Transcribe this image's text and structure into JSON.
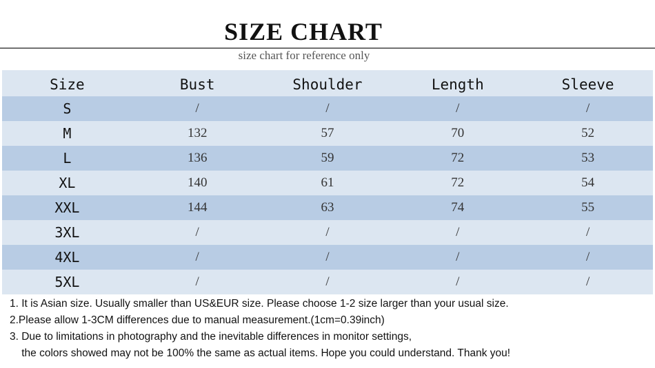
{
  "header": {
    "title": "SIZE CHART",
    "subtitle": "size chart for reference only"
  },
  "colors": {
    "row_light": "#dce6f1",
    "row_dark": "#b8cce4"
  },
  "table": {
    "columns": [
      "Size",
      "Bust",
      "Shoulder",
      "Length",
      "Sleeve"
    ],
    "rows": [
      [
        "S",
        "/",
        "/",
        "/",
        "/"
      ],
      [
        "M",
        "132",
        "57",
        "70",
        "52"
      ],
      [
        "L",
        "136",
        "59",
        "72",
        "53"
      ],
      [
        "XL",
        "140",
        "61",
        "72",
        "54"
      ],
      [
        "XXL",
        "144",
        "63",
        "74",
        "55"
      ],
      [
        "3XL",
        "/",
        "/",
        "/",
        "/"
      ],
      [
        "4XL",
        "/",
        "/",
        "/",
        "/"
      ],
      [
        "5XL",
        "/",
        "/",
        "/",
        "/"
      ]
    ]
  },
  "notes": [
    "1. It is Asian size.  Usually smaller than US&EUR size. Please choose 1-2 size larger than your usual size.",
    "2.Please allow 1-3CM differences due to manual measurement.(1cm=0.39inch)",
    "3. Due to limitations in photography and the inevitable differences in monitor settings,",
    "    the colors showed may not be 100% the same as actual items. Hope you could understand. Thank you!"
  ]
}
